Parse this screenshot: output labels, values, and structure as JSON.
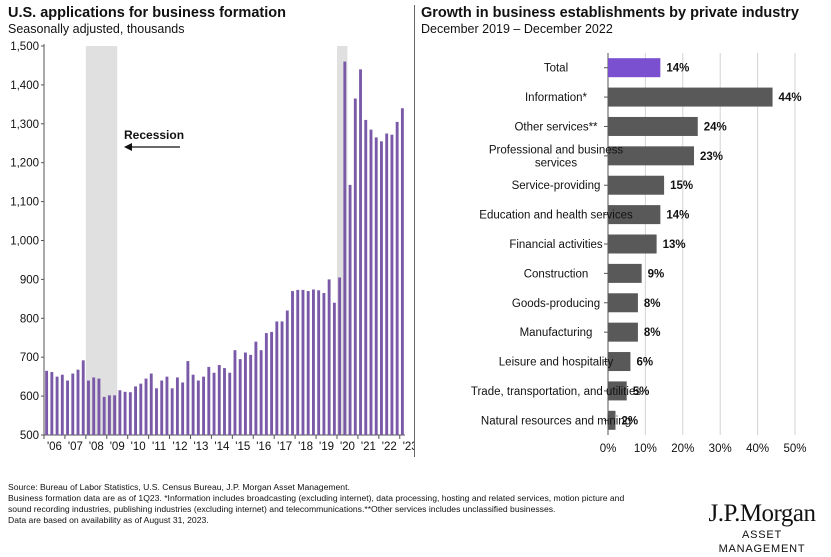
{
  "chart_data": [
    {
      "type": "bar",
      "title": "U.S. applications for business formation",
      "subtitle": "Seasonally adjusted, thousands",
      "xlabel": "",
      "ylabel": "",
      "ylim": [
        500,
        1500
      ],
      "yticks": [
        500,
        600,
        700,
        800,
        900,
        1000,
        1100,
        1200,
        1300,
        1400,
        1500
      ],
      "ytick_labels": [
        "500",
        "600",
        "700",
        "800",
        "900",
        "1,000",
        "1,100",
        "1,200",
        "1,300",
        "1,400",
        "1,500"
      ],
      "x_start": "1Q06",
      "x_frequency": "quarterly",
      "x_tick_labels": [
        "'06",
        "'07",
        "'08",
        "'09",
        "'10",
        "'11",
        "'12",
        "'13",
        "'14",
        "'15",
        "'16",
        "'17",
        "'18",
        "'19",
        "'20",
        "'21",
        "'22",
        "'23"
      ],
      "values": [
        665,
        662,
        650,
        655,
        640,
        658,
        668,
        692,
        640,
        648,
        645,
        598,
        602,
        602,
        615,
        611,
        610,
        625,
        632,
        645,
        658,
        620,
        640,
        650,
        620,
        648,
        635,
        690,
        655,
        640,
        650,
        675,
        660,
        680,
        672,
        660,
        718,
        695,
        712,
        706,
        740,
        718,
        762,
        765,
        792,
        792,
        820,
        870,
        873,
        873,
        870,
        874,
        872,
        865,
        900,
        840,
        905,
        1460,
        1143,
        1365,
        1440,
        1310,
        1285,
        1265,
        1255,
        1275,
        1272,
        1305,
        1340
      ],
      "recession_shading": [
        "1Q08-2Q09",
        "1Q20-2Q20"
      ],
      "annotation": "Recession",
      "color": "#7a5aa8",
      "grid": false
    },
    {
      "type": "bar",
      "orientation": "horizontal",
      "title": "Growth in business establishments by private industry",
      "subtitle": "December 2019 – December 2022",
      "categories": [
        "Total",
        "Information*",
        "Other services**",
        "Professional and business services",
        "Service-providing",
        "Education and health services",
        "Financial activities",
        "Construction",
        "Goods-producing",
        "Manufacturing",
        "Leisure and hospitality",
        "Trade, transportation, and utilities",
        "Natural resources and mining"
      ],
      "category_lines": [
        [
          "Total"
        ],
        [
          "Information*"
        ],
        [
          "Other services**"
        ],
        [
          "Professional and business",
          "services"
        ],
        [
          "Service-providing"
        ],
        [
          "Education and health services"
        ],
        [
          "Financial activities"
        ],
        [
          "Construction"
        ],
        [
          "Goods-producing"
        ],
        [
          "Manufacturing"
        ],
        [
          "Leisure and hospitality"
        ],
        [
          "Trade, transportation, and utilities"
        ],
        [
          "Natural resources and mining"
        ]
      ],
      "values": [
        14,
        44,
        24,
        23,
        15,
        14,
        13,
        9,
        8,
        8,
        6,
        5,
        2
      ],
      "value_labels": [
        "14%",
        "44%",
        "24%",
        "23%",
        "15%",
        "14%",
        "13%",
        "9%",
        "8%",
        "8%",
        "6%",
        "5%",
        "2%"
      ],
      "xlim": [
        0,
        50
      ],
      "xticks": [
        0,
        10,
        20,
        30,
        40,
        50
      ],
      "xtick_labels": [
        "0%",
        "10%",
        "20%",
        "30%",
        "40%",
        "50%"
      ],
      "highlight_color": "#7a4fd0",
      "bar_color": "#595959",
      "grid": true
    }
  ],
  "footnotes": [
    "Source: Bureau of Labor Statistics, U.S. Census Bureau, J.P. Morgan Asset Management.",
    "Business formation data are as of 1Q23. *Information includes broadcasting (excluding internet), data processing, hosting and related services, motion picture and",
    "sound recording industries, publishing industries (excluding internet) and telecommunications.**Other services includes unclassified businesses.",
    "Data are based on availability as of August 31, 2023."
  ],
  "logo": {
    "main": "J.P.Morgan",
    "sub": "ASSET MANAGEMENT"
  }
}
